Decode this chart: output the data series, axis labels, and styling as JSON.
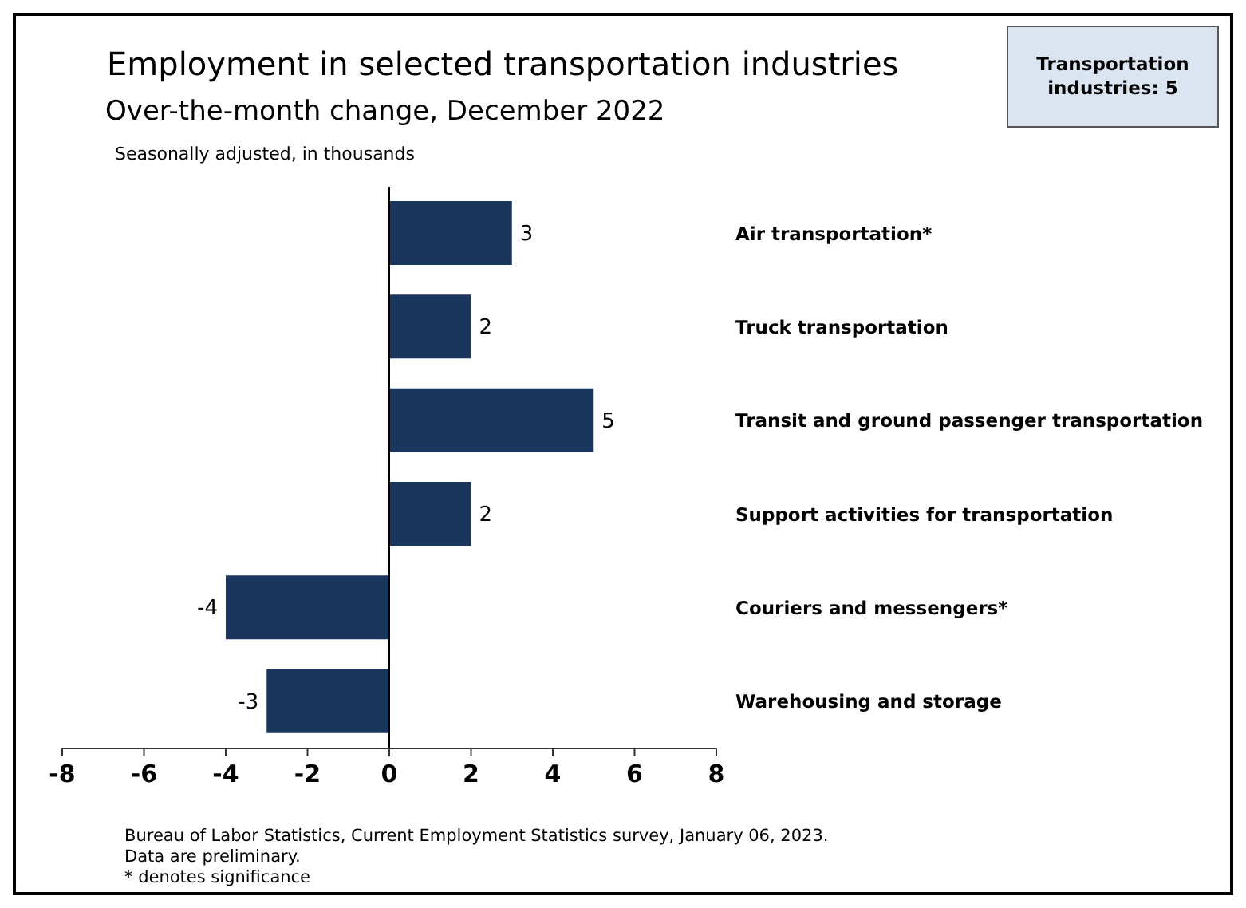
{
  "chart_data": {
    "type": "bar",
    "orientation": "horizontal",
    "title": "Employment in selected transportation industries",
    "subtitle": "Over-the-month change, December 2022",
    "categories": [
      "Air transportation*",
      "Truck transportation",
      "Transit and ground passenger transportation",
      "Support activities for transportation",
      "Couriers and messengers*",
      "Warehousing and storage"
    ],
    "values": [
      3,
      2,
      5,
      2,
      -4,
      -3
    ],
    "color": "#1b365d",
    "xlim": [
      -8,
      8
    ],
    "xticks": [
      -8,
      -6,
      -4,
      -2,
      0,
      2,
      4,
      6,
      8
    ],
    "data_labels": true,
    "grid": false,
    "legend": false,
    "ref_lines": [
      {
        "axis": "x",
        "value": 0,
        "color": "#000000"
      }
    ],
    "annotations": [
      "Transportation industries: 5",
      "Seasonally adjusted, in thousands",
      "Bureau of Labor Statistics, Current Employment Statistics survey, January 06, 2023.",
      "Data are preliminary.",
      "* denotes significance"
    ]
  }
}
